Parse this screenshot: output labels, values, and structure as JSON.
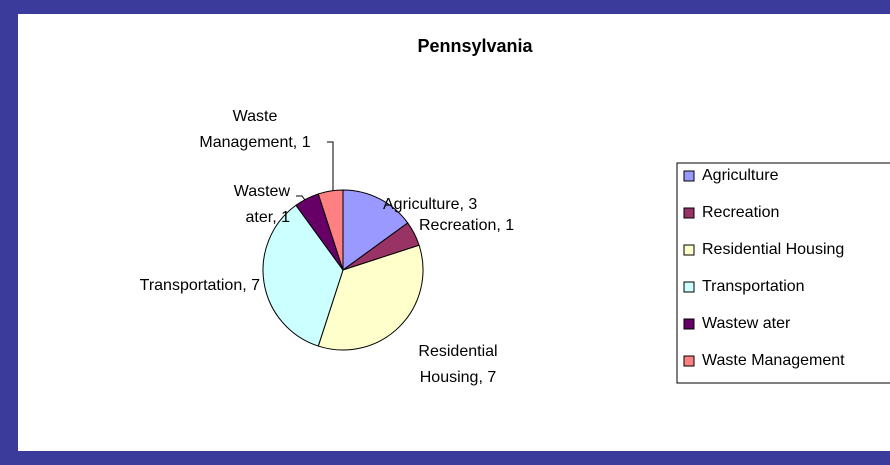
{
  "chart_data": {
    "type": "pie",
    "title": "Pennsylvania",
    "categories": [
      "Agriculture",
      "Recreation",
      "Residential Housing",
      "Transportation",
      "Wastew ater",
      "Waste Management"
    ],
    "values": [
      3,
      1,
      7,
      7,
      1,
      1
    ],
    "value_labels": [
      "Agriculture, 3",
      "Recreation, 1",
      "Residential Housing, 7",
      "Transportation, 7",
      "Wastew ater, 1",
      "Waste Management, 1"
    ],
    "colors": [
      "#9999ff",
      "#993366",
      "#ffffcc",
      "#ccffff",
      "#660066",
      "#ff8080"
    ],
    "legend": "right"
  }
}
